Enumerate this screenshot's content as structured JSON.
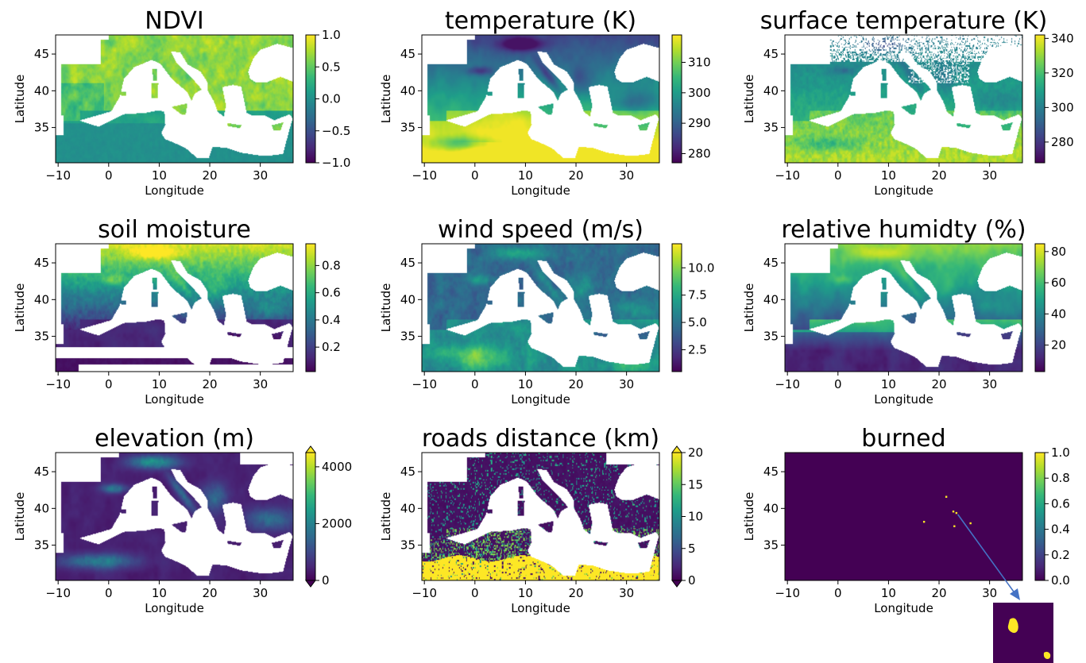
{
  "axes": {
    "xlabel": "Longitude",
    "ylabel": "Latitude",
    "x_ticks": [
      -10,
      0,
      10,
      20,
      30
    ],
    "x_tick_labels": [
      "−10",
      "0",
      "10",
      "20",
      "30"
    ],
    "y_ticks": [
      35,
      40,
      45
    ],
    "y_tick_labels": [
      "35",
      "40",
      "45"
    ],
    "x_range": [
      -10.5,
      36.5
    ],
    "y_range": [
      30.2,
      47.6
    ]
  },
  "colors": {
    "viridis": [
      "#440154",
      "#482878",
      "#3e4989",
      "#31688e",
      "#26828e",
      "#1f9e89",
      "#35b779",
      "#6ece58",
      "#b5de2b",
      "#fde725"
    ],
    "land_mask": "#ffffff",
    "arrow": "#4472c4"
  },
  "chart_data": [
    {
      "type": "heatmap",
      "title": "NDVI",
      "colorbar": {
        "min": -1.0,
        "max": 1.0,
        "ticks": [
          -1.0,
          -0.5,
          0.0,
          0.5,
          1.0
        ],
        "tick_labels": [
          "−1.0",
          "−0.5",
          "0.0",
          "0.5",
          "1.0"
        ],
        "extend": "neither"
      },
      "pattern": "ndvi"
    },
    {
      "type": "heatmap",
      "title": "temperature (K)",
      "colorbar": {
        "min": 277,
        "max": 319,
        "ticks": [
          280,
          290,
          300,
          310
        ],
        "tick_labels": [
          "280",
          "290",
          "300",
          "310"
        ],
        "extend": "neither"
      },
      "pattern": "temp"
    },
    {
      "type": "heatmap",
      "title": "surface temperature (K)",
      "colorbar": {
        "min": 268,
        "max": 342,
        "ticks": [
          280,
          300,
          320,
          340
        ],
        "tick_labels": [
          "280",
          "300",
          "320",
          "340"
        ],
        "extend": "neither"
      },
      "pattern": "lst"
    },
    {
      "type": "heatmap",
      "title": "soil moisture",
      "colorbar": {
        "min": 0.02,
        "max": 0.96,
        "ticks": [
          0.2,
          0.4,
          0.6,
          0.8
        ],
        "tick_labels": [
          "0.2",
          "0.4",
          "0.6",
          "0.8"
        ],
        "extend": "neither"
      },
      "pattern": "soil"
    },
    {
      "type": "heatmap",
      "title": "wind speed (m/s)",
      "colorbar": {
        "min": 0.5,
        "max": 12.2,
        "ticks": [
          2.5,
          5.0,
          7.5,
          10.0
        ],
        "tick_labels": [
          "2.5",
          "5.0",
          "7.5",
          "10.0"
        ],
        "extend": "neither"
      },
      "pattern": "wind"
    },
    {
      "type": "heatmap",
      "title": "relative humidty (%)",
      "colorbar": {
        "min": 3,
        "max": 85,
        "ticks": [
          20,
          40,
          60,
          80
        ],
        "tick_labels": [
          "20",
          "40",
          "60",
          "80"
        ],
        "extend": "neither"
      },
      "pattern": "rh"
    },
    {
      "type": "heatmap",
      "title": "elevation (m)",
      "colorbar": {
        "min": 0,
        "max": 4500,
        "ticks": [
          0,
          2000,
          4000
        ],
        "tick_labels": [
          "0",
          "2000",
          "4000"
        ],
        "extend": "both"
      },
      "pattern": "elev"
    },
    {
      "type": "heatmap",
      "title": "roads distance (km)",
      "colorbar": {
        "min": 0,
        "max": 20,
        "ticks": [
          0,
          5,
          10,
          15,
          20
        ],
        "tick_labels": [
          "0",
          "5",
          "10",
          "15",
          "20"
        ],
        "extend": "both"
      },
      "pattern": "roads"
    },
    {
      "type": "heatmap",
      "title": "burned",
      "colorbar": {
        "min": 0.0,
        "max": 1.0,
        "ticks": [
          0.0,
          0.2,
          0.4,
          0.6,
          0.8,
          1.0
        ],
        "tick_labels": [
          "0.0",
          "0.2",
          "0.4",
          "0.6",
          "0.8",
          "1.0"
        ],
        "extend": "neither"
      },
      "pattern": "burned",
      "burned_points": [
        [
          23.4,
          39.4
        ],
        [
          22.8,
          39.6
        ],
        [
          23.0,
          37.6
        ],
        [
          17.0,
          38.2
        ],
        [
          26.2,
          38.0
        ],
        [
          21.4,
          41.6
        ]
      ],
      "has_inset": true
    }
  ]
}
